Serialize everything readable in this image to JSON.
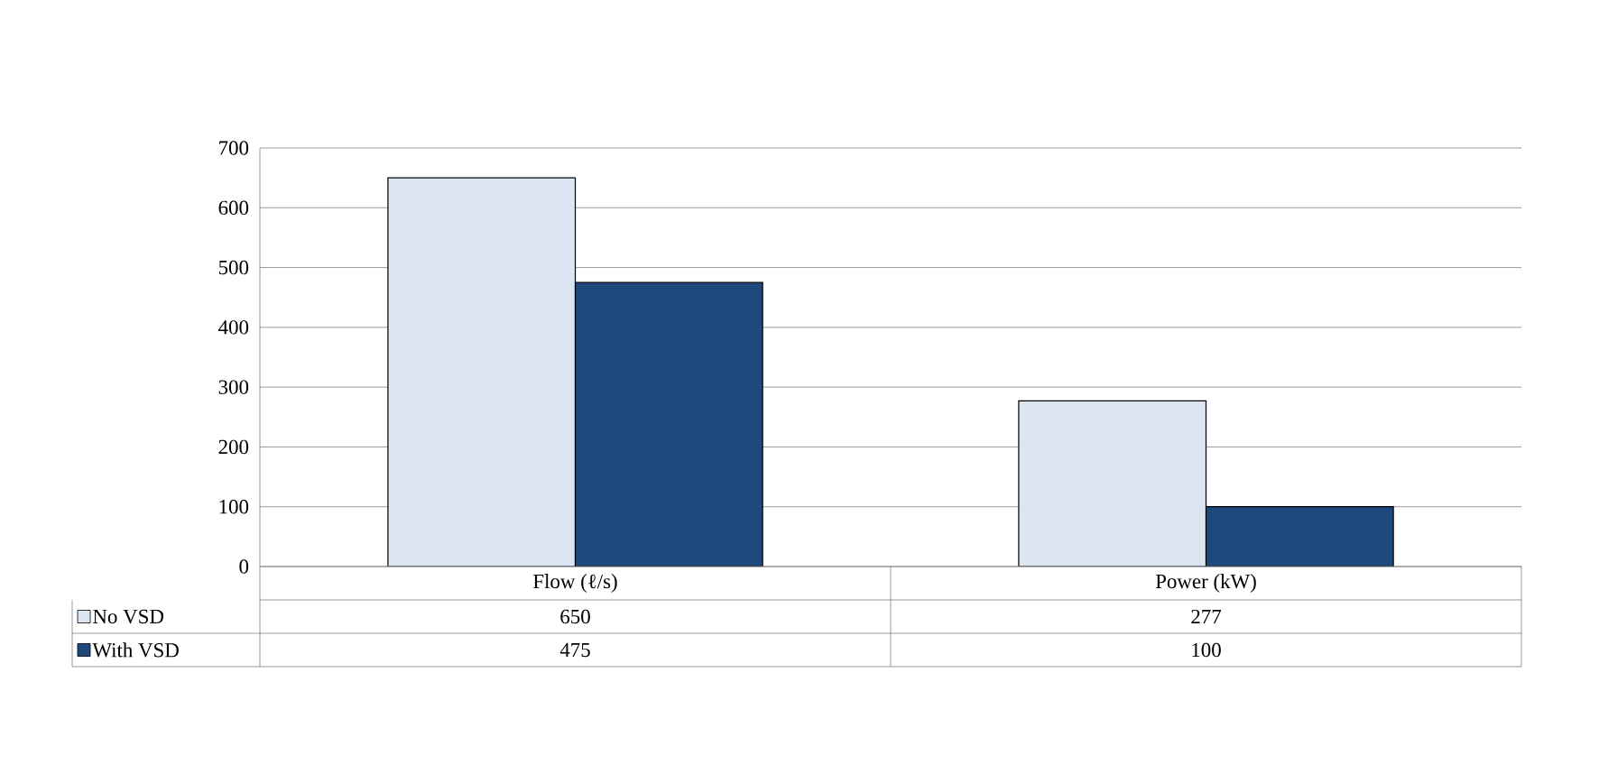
{
  "chart_data": {
    "type": "bar",
    "categories": [
      "Flow (ℓ/s)",
      "Power (kW)"
    ],
    "series": [
      {
        "name": "No VSD",
        "color": "#dce6f2",
        "values": [
          650,
          277
        ]
      },
      {
        "name": "With VSD",
        "color": "#1f497d",
        "values": [
          475,
          100
        ]
      }
    ],
    "ylim": [
      0,
      700
    ],
    "yticks": [
      0,
      100,
      200,
      300,
      400,
      500,
      600,
      700
    ],
    "grid": "y",
    "legend": "bottom left",
    "data_labels": true
  }
}
